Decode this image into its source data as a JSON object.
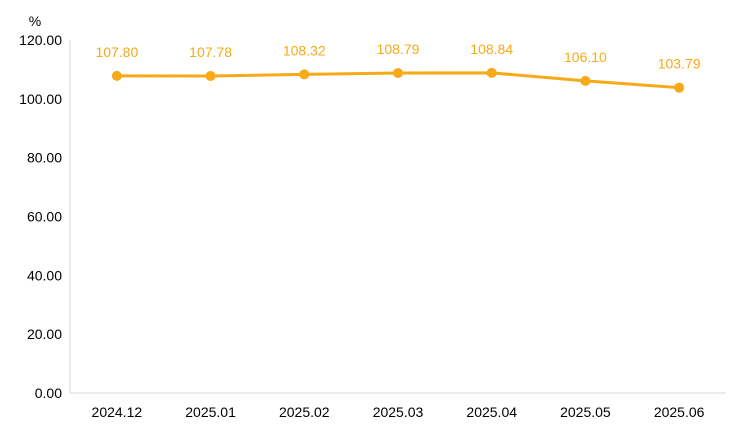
{
  "chart_data": {
    "type": "line",
    "title": "",
    "xlabel": "",
    "ylabel": "",
    "y_unit": "%",
    "categories": [
      "2024.12",
      "2025.01",
      "2025.02",
      "2025.03",
      "2025.04",
      "2025.05",
      "2025.06"
    ],
    "series": [
      {
        "values": [
          107.8,
          107.78,
          108.32,
          108.79,
          108.84,
          106.1,
          103.79
        ],
        "labels": [
          "107.80",
          "107.78",
          "108.32",
          "108.79",
          "108.84",
          "106.10",
          "103.79"
        ],
        "color": "#F7A918"
      }
    ],
    "ylim": [
      0,
      120
    ],
    "yticks": [
      "0.00",
      "20.00",
      "40.00",
      "60.00",
      "80.00",
      "100.00",
      "120.00"
    ],
    "ytick_values": [
      0,
      20,
      40,
      60,
      80,
      100,
      120
    ],
    "grid": false,
    "legend": "none",
    "axis_color": "#D9D9D9"
  }
}
